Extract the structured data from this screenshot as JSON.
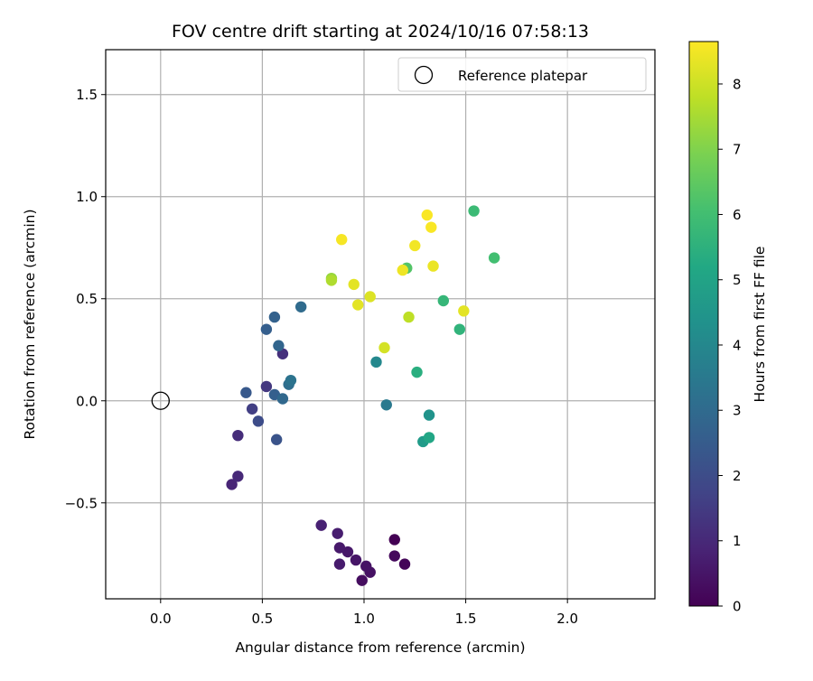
{
  "chart_data": {
    "type": "scatter",
    "title": "FOV centre drift starting at 2024/10/16 07:58:13",
    "xlabel": "Angular distance from reference (arcmin)",
    "ylabel": "Rotation from reference (arcmin)",
    "xlim": [
      -0.27,
      2.43
    ],
    "ylim": [
      -0.97,
      1.72
    ],
    "xticks": [
      0.0,
      0.5,
      1.0,
      1.5,
      2.0
    ],
    "xtick_labels": [
      "0.0",
      "0.5",
      "1.0",
      "1.5",
      "2.0"
    ],
    "yticks": [
      -0.5,
      0.0,
      0.5,
      1.0,
      1.5
    ],
    "ytick_labels": [
      "−0.5",
      "0.0",
      "0.5",
      "1.0",
      "1.5"
    ],
    "grid": true,
    "legend": {
      "position": "top-right",
      "entries": [
        "Reference platepar"
      ]
    },
    "reference_point": {
      "name": "Reference platepar",
      "x": 0.0,
      "y": 0.0,
      "marker": "open-circle",
      "color": "#000000"
    },
    "colorbar": {
      "label": "Hours from first FF file",
      "colormap": "viridis",
      "range": [
        0,
        8.65
      ],
      "ticks": [
        0,
        1,
        2,
        3,
        4,
        5,
        6,
        7,
        8
      ],
      "tick_labels": [
        "0",
        "1",
        "2",
        "3",
        "4",
        "5",
        "6",
        "7",
        "8"
      ]
    },
    "series": [
      {
        "marker": "filled-circle",
        "points": [
          {
            "x": 1.15,
            "y": -0.68,
            "hours": 0.0
          },
          {
            "x": 1.2,
            "y": -0.8,
            "hours": 0.1
          },
          {
            "x": 1.15,
            "y": -0.76,
            "hours": 0.2
          },
          {
            "x": 0.99,
            "y": -0.88,
            "hours": 0.3
          },
          {
            "x": 1.03,
            "y": -0.84,
            "hours": 0.4
          },
          {
            "x": 1.01,
            "y": -0.81,
            "hours": 0.45
          },
          {
            "x": 0.96,
            "y": -0.78,
            "hours": 0.5
          },
          {
            "x": 0.92,
            "y": -0.74,
            "hours": 0.55
          },
          {
            "x": 0.88,
            "y": -0.72,
            "hours": 0.6
          },
          {
            "x": 0.88,
            "y": -0.8,
            "hours": 0.65
          },
          {
            "x": 0.87,
            "y": -0.65,
            "hours": 0.7
          },
          {
            "x": 0.79,
            "y": -0.61,
            "hours": 0.8
          },
          {
            "x": 0.35,
            "y": -0.41,
            "hours": 0.9
          },
          {
            "x": 0.38,
            "y": -0.37,
            "hours": 1.0
          },
          {
            "x": 0.38,
            "y": -0.17,
            "hours": 1.1
          },
          {
            "x": 0.6,
            "y": 0.23,
            "hours": 1.2
          },
          {
            "x": 0.52,
            "y": 0.07,
            "hours": 1.4
          },
          {
            "x": 0.45,
            "y": -0.04,
            "hours": 1.6
          },
          {
            "x": 0.48,
            "y": -0.1,
            "hours": 2.0
          },
          {
            "x": 0.57,
            "y": -0.19,
            "hours": 2.2
          },
          {
            "x": 0.42,
            "y": 0.04,
            "hours": 2.4
          },
          {
            "x": 0.52,
            "y": 0.35,
            "hours": 2.6
          },
          {
            "x": 0.56,
            "y": 0.41,
            "hours": 2.7
          },
          {
            "x": 0.58,
            "y": 0.27,
            "hours": 2.8
          },
          {
            "x": 0.56,
            "y": 0.03,
            "hours": 2.6
          },
          {
            "x": 0.6,
            "y": 0.01,
            "hours": 2.9
          },
          {
            "x": 0.69,
            "y": 0.46,
            "hours": 3.0
          },
          {
            "x": 0.63,
            "y": 0.08,
            "hours": 3.1
          },
          {
            "x": 0.64,
            "y": 0.1,
            "hours": 3.3
          },
          {
            "x": 1.11,
            "y": -0.02,
            "hours": 3.5
          },
          {
            "x": 1.06,
            "y": 0.19,
            "hours": 4.0
          },
          {
            "x": 1.32,
            "y": -0.07,
            "hours": 4.4
          },
          {
            "x": 1.29,
            "y": -0.2,
            "hours": 4.7
          },
          {
            "x": 1.32,
            "y": -0.18,
            "hours": 5.1
          },
          {
            "x": 1.26,
            "y": 0.14,
            "hours": 5.4
          },
          {
            "x": 1.47,
            "y": 0.35,
            "hours": 5.6
          },
          {
            "x": 1.39,
            "y": 0.49,
            "hours": 5.7
          },
          {
            "x": 1.54,
            "y": 0.93,
            "hours": 5.85
          },
          {
            "x": 1.64,
            "y": 0.7,
            "hours": 6.0
          },
          {
            "x": 1.21,
            "y": 0.65,
            "hours": 6.3
          },
          {
            "x": 0.84,
            "y": 0.6,
            "hours": 7.3
          },
          {
            "x": 0.84,
            "y": 0.59,
            "hours": 7.6
          },
          {
            "x": 1.22,
            "y": 0.41,
            "hours": 7.8
          },
          {
            "x": 1.1,
            "y": 0.26,
            "hours": 8.1
          },
          {
            "x": 1.03,
            "y": 0.51,
            "hours": 8.2
          },
          {
            "x": 0.95,
            "y": 0.57,
            "hours": 8.3
          },
          {
            "x": 0.97,
            "y": 0.47,
            "hours": 8.3
          },
          {
            "x": 1.49,
            "y": 0.44,
            "hours": 8.3
          },
          {
            "x": 1.34,
            "y": 0.66,
            "hours": 8.4
          },
          {
            "x": 1.19,
            "y": 0.64,
            "hours": 8.45
          },
          {
            "x": 1.25,
            "y": 0.76,
            "hours": 8.5
          },
          {
            "x": 0.89,
            "y": 0.79,
            "hours": 8.55
          },
          {
            "x": 1.31,
            "y": 0.91,
            "hours": 8.6
          },
          {
            "x": 1.33,
            "y": 0.85,
            "hours": 8.6
          }
        ]
      }
    ]
  }
}
